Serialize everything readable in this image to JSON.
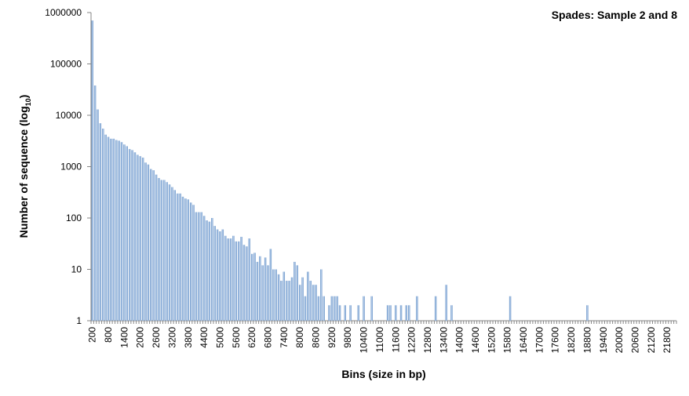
{
  "chart_data": {
    "type": "bar",
    "title": "Spades: Sample 2 and 8",
    "x_label": "Bins (size in bp)",
    "y_label": [
      "Number of sequence (log",
      "10",
      ")"
    ],
    "log_y": true,
    "color": "#4f81bd",
    "fill_light": "#c6d9f1",
    "ylim": [
      1,
      1000000
    ],
    "yticks": [
      1,
      10,
      100,
      1000,
      10000,
      100000,
      1000000
    ],
    "categories": [
      200,
      null,
      null,
      null,
      null,
      null,
      800,
      null,
      null,
      null,
      null,
      null,
      1400,
      null,
      null,
      null,
      null,
      null,
      2000,
      null,
      null,
      null,
      null,
      null,
      2600,
      null,
      null,
      null,
      null,
      null,
      3200,
      null,
      null,
      null,
      null,
      null,
      3800,
      null,
      null,
      null,
      null,
      null,
      4400,
      null,
      null,
      null,
      null,
      null,
      5000,
      null,
      null,
      null,
      null,
      null,
      5600,
      null,
      null,
      null,
      null,
      null,
      6200,
      null,
      null,
      null,
      null,
      null,
      6800,
      null,
      null,
      null,
      null,
      null,
      7400,
      null,
      null,
      null,
      null,
      null,
      8000,
      null,
      null,
      null,
      null,
      null,
      8600,
      null,
      null,
      null,
      null,
      null,
      9200,
      null,
      null,
      null,
      null,
      null,
      9800,
      null,
      null,
      null,
      null,
      null,
      10400,
      null,
      null,
      null,
      null,
      null,
      11000,
      null,
      null,
      null,
      null,
      null,
      11600,
      null,
      null,
      null,
      null,
      null,
      12200,
      null,
      null,
      null,
      null,
      null,
      12800,
      null,
      null,
      null,
      null,
      null,
      13400,
      null,
      null,
      null,
      null,
      null,
      14000,
      null,
      null,
      null,
      null,
      null,
      14600,
      null,
      null,
      null,
      null,
      null,
      15200,
      null,
      null,
      null,
      null,
      null,
      15800,
      null,
      null,
      null,
      null,
      null,
      16400,
      null,
      null,
      null,
      null,
      null,
      17000,
      null,
      null,
      null,
      null,
      null,
      17600,
      null,
      null,
      null,
      null,
      null,
      18200,
      null,
      null,
      null,
      null,
      null,
      18800,
      null,
      null,
      null,
      null,
      null,
      19400,
      null,
      null,
      null,
      null,
      null,
      20000,
      null,
      null,
      null,
      null,
      null,
      20600,
      null,
      null,
      null,
      null,
      null,
      21200,
      null,
      null,
      null,
      null,
      null,
      21800,
      null,
      null,
      null
    ],
    "values": [
      700000,
      38000,
      13000,
      7000,
      5500,
      4200,
      3800,
      3500,
      3500,
      3300,
      3200,
      3000,
      2700,
      2500,
      2200,
      2100,
      1900,
      1700,
      1600,
      1500,
      1200,
      1100,
      900,
      850,
      700,
      600,
      550,
      550,
      500,
      450,
      400,
      350,
      300,
      300,
      260,
      240,
      230,
      200,
      180,
      130,
      130,
      130,
      110,
      90,
      85,
      100,
      70,
      60,
      55,
      60,
      45,
      40,
      40,
      45,
      35,
      35,
      43,
      30,
      28,
      40,
      20,
      21,
      14,
      18,
      12,
      17,
      12,
      25,
      10,
      10,
      8,
      6,
      9,
      6,
      6,
      7,
      14,
      12,
      5,
      7,
      3,
      9,
      6,
      5,
      5,
      3,
      10,
      3,
      null,
      2,
      3,
      3,
      3,
      2,
      null,
      2,
      null,
      2,
      null,
      null,
      2,
      null,
      3,
      null,
      null,
      3,
      null,
      null,
      null,
      null,
      null,
      2,
      2,
      null,
      2,
      null,
      2,
      null,
      2,
      2,
      null,
      null,
      3,
      null,
      null,
      null,
      null,
      null,
      null,
      3,
      null,
      null,
      null,
      5,
      null,
      2,
      null,
      null,
      null,
      null,
      null,
      null,
      null,
      null,
      null,
      null,
      null,
      null,
      null,
      null,
      null,
      null,
      null,
      null,
      null,
      null,
      null,
      3,
      null,
      null,
      null,
      null,
      null,
      null,
      null,
      null,
      null,
      null,
      null,
      null,
      null,
      null,
      null,
      null,
      null,
      null,
      null,
      null,
      null,
      null,
      null,
      null,
      null,
      null,
      null,
      null,
      2,
      null,
      null,
      null,
      null,
      null,
      null,
      null,
      null,
      null,
      null,
      null,
      null,
      null,
      null,
      null,
      null,
      null,
      null,
      null,
      null,
      null,
      null,
      null,
      null,
      null,
      null,
      null,
      null,
      null,
      null,
      null,
      null,
      null
    ]
  }
}
